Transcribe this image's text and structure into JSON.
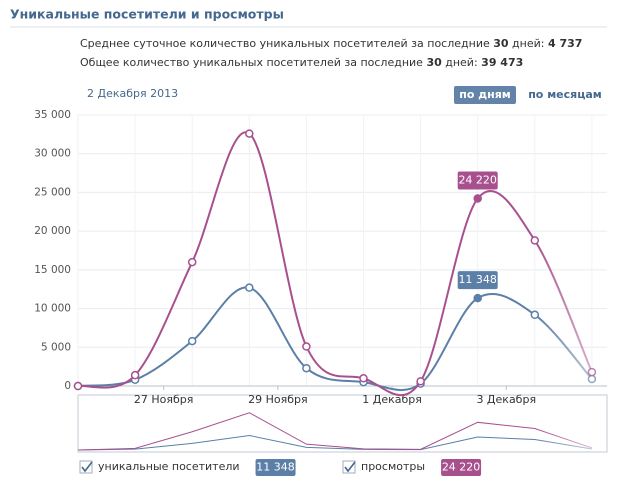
{
  "header": {
    "title": "Уникальные посетители и просмотры",
    "line1": [
      "Среднее суточное количество уникальных посетителей за последние ",
      "30",
      " дней: ",
      "4 737"
    ],
    "line2": [
      "Общее количество уникальных посетителей за последние ",
      "30",
      " дней: ",
      "39 473"
    ],
    "date": "2 Декабря 2013",
    "button_days": "по дням",
    "button_months": "по месяцам"
  },
  "chart_data": {
    "type": "line",
    "categories": [
      null,
      "27 Ноября",
      null,
      "29 Ноября",
      null,
      "1 Декабря",
      null,
      "3 Декабря",
      null,
      null
    ],
    "series": [
      {
        "name": "уникальные посетители",
        "color": "#5b7fa6",
        "values": [
          0,
          800,
          5800,
          12700,
          2300,
          500,
          300,
          11348,
          9200,
          900
        ],
        "value_labels": {
          "7": "11 348"
        }
      },
      {
        "name": "просмотры",
        "color": "#a8508e",
        "values": [
          0,
          1400,
          16000,
          32600,
          5100,
          1000,
          600,
          24220,
          18800,
          1800
        ],
        "value_labels": {
          "7": "24 220"
        }
      }
    ],
    "ylim": [
      0,
      35000
    ],
    "yticks": [
      0,
      {
        "value": 5000,
        "label": "5 000"
      },
      {
        "value": 10000,
        "label": "10 000"
      },
      {
        "value": 15000,
        "label": "15 000"
      },
      {
        "value": 20000,
        "label": "20 000"
      },
      {
        "value": 25000,
        "label": "25 000"
      },
      {
        "value": 30000,
        "label": "30 000"
      },
      {
        "value": 35000,
        "label": "35 000"
      }
    ],
    "grid": true
  }
}
